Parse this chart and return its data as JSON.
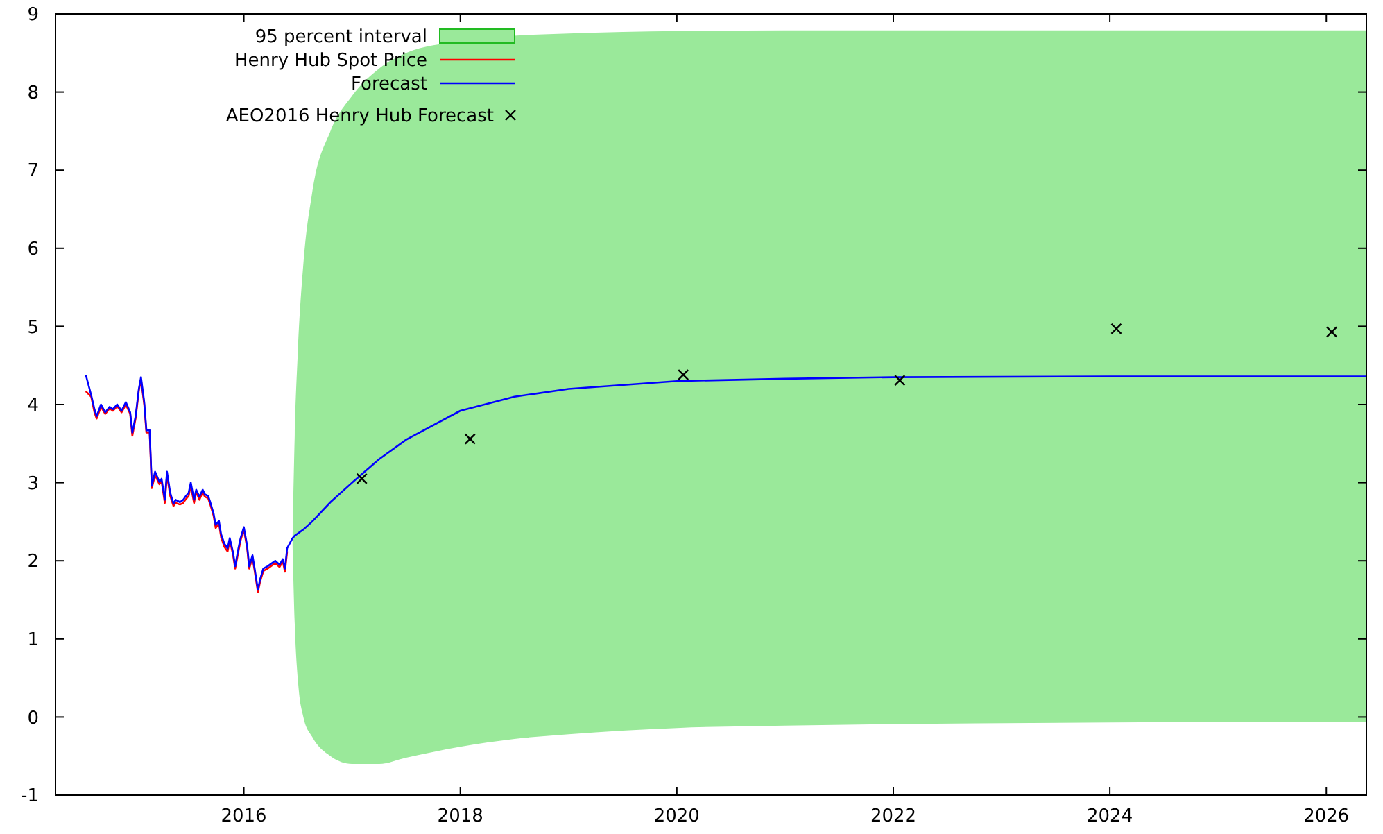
{
  "chart_data": {
    "type": "line",
    "xlim": [
      2014.26,
      2026.37
    ],
    "ylim": [
      -1,
      9
    ],
    "xticks": [
      2016,
      2018,
      2020,
      2022,
      2024,
      2026
    ],
    "yticks": [
      -1,
      0,
      1,
      2,
      3,
      4,
      5,
      6,
      7,
      8,
      9
    ],
    "grid": false,
    "legend": "top left",
    "line_style": "solid",
    "annotations": [
      "95 percent interval"
    ],
    "series": [
      {
        "name": "Henry Hub Spot Price",
        "color": "#ff0000",
        "x": [
          2014.54,
          2014.59,
          2014.62,
          2014.64,
          2014.68,
          2014.72,
          2014.76,
          2014.79,
          2014.83,
          2014.87,
          2014.91,
          2014.95,
          2014.97,
          2015.0,
          2015.03,
          2015.05,
          2015.08,
          2015.1,
          2015.13,
          2015.15,
          2015.18,
          2015.22,
          2015.24,
          2015.27,
          2015.29,
          2015.32,
          2015.35,
          2015.37,
          2015.41,
          2015.44,
          2015.46,
          2015.49,
          2015.51,
          2015.54,
          2015.56,
          2015.59,
          2015.62,
          2015.64,
          2015.67,
          2015.69,
          2015.72,
          2015.74,
          2015.77,
          2015.79,
          2015.82,
          2015.85,
          2015.87,
          2015.9,
          2015.92,
          2015.95,
          2015.97,
          2016.0,
          2016.03,
          2016.05,
          2016.08,
          2016.1,
          2016.13,
          2016.15,
          2016.18,
          2016.22,
          2016.26,
          2016.29,
          2016.33,
          2016.36,
          2016.38,
          2016.4
        ],
        "values": [
          4.17,
          4.1,
          3.9,
          3.82,
          3.97,
          3.88,
          3.95,
          3.92,
          3.98,
          3.9,
          4.0,
          3.88,
          3.6,
          3.82,
          4.18,
          4.32,
          4.0,
          3.64,
          3.64,
          2.93,
          3.1,
          2.98,
          3.02,
          2.74,
          3.1,
          2.83,
          2.7,
          2.74,
          2.72,
          2.74,
          2.78,
          2.83,
          2.96,
          2.74,
          2.88,
          2.78,
          2.88,
          2.82,
          2.8,
          2.72,
          2.58,
          2.42,
          2.48,
          2.3,
          2.18,
          2.12,
          2.26,
          2.08,
          1.9,
          2.12,
          2.26,
          2.4,
          2.17,
          1.9,
          2.04,
          1.87,
          1.6,
          1.73,
          1.87,
          1.9,
          1.94,
          1.97,
          1.92,
          1.99,
          1.86,
          2.12
        ]
      },
      {
        "name": "Forecast",
        "color": "#0000ff",
        "x": [
          2014.54,
          2014.59,
          2014.62,
          2014.64,
          2014.68,
          2014.72,
          2014.76,
          2014.79,
          2014.83,
          2014.87,
          2014.91,
          2014.95,
          2014.97,
          2015.0,
          2015.03,
          2015.05,
          2015.08,
          2015.1,
          2015.13,
          2015.15,
          2015.18,
          2015.22,
          2015.24,
          2015.27,
          2015.29,
          2015.32,
          2015.35,
          2015.37,
          2015.41,
          2015.44,
          2015.46,
          2015.49,
          2015.51,
          2015.54,
          2015.56,
          2015.59,
          2015.62,
          2015.64,
          2015.67,
          2015.69,
          2015.72,
          2015.74,
          2015.77,
          2015.79,
          2015.82,
          2015.85,
          2015.87,
          2015.9,
          2015.92,
          2015.95,
          2015.97,
          2016.0,
          2016.03,
          2016.05,
          2016.08,
          2016.1,
          2016.13,
          2016.15,
          2016.18,
          2016.22,
          2016.26,
          2016.29,
          2016.33,
          2016.36,
          2016.38,
          2016.4,
          2016.45,
          2016.47,
          2016.5,
          2016.55,
          2016.63,
          2016.8,
          2017.0,
          2017.25,
          2017.5,
          2018.0,
          2018.5,
          2019.0,
          2020.0,
          2021.0,
          2022.0,
          2024.0,
          2026.37
        ],
        "values": [
          4.38,
          4.12,
          3.94,
          3.85,
          4.0,
          3.9,
          3.97,
          3.94,
          4.0,
          3.92,
          4.03,
          3.9,
          3.64,
          3.85,
          4.2,
          4.35,
          4.03,
          3.67,
          3.67,
          2.96,
          3.14,
          3.01,
          3.05,
          2.78,
          3.14,
          2.87,
          2.73,
          2.78,
          2.75,
          2.78,
          2.82,
          2.87,
          3.0,
          2.78,
          2.91,
          2.82,
          2.91,
          2.85,
          2.83,
          2.75,
          2.61,
          2.46,
          2.51,
          2.34,
          2.22,
          2.16,
          2.29,
          2.11,
          1.93,
          2.16,
          2.29,
          2.43,
          2.2,
          1.93,
          2.07,
          1.9,
          1.63,
          1.76,
          1.9,
          1.93,
          1.97,
          2.0,
          1.95,
          2.02,
          1.9,
          2.16,
          2.29,
          2.32,
          2.35,
          2.4,
          2.5,
          2.75,
          3.0,
          3.3,
          3.55,
          3.92,
          4.1,
          4.2,
          4.3,
          4.33,
          4.35,
          4.36,
          4.36
        ],
        "lower": [
          null,
          null,
          null,
          null,
          null,
          null,
          null,
          null,
          null,
          null,
          null,
          null,
          null,
          null,
          null,
          null,
          null,
          null,
          null,
          null,
          null,
          null,
          null,
          null,
          null,
          null,
          null,
          null,
          null,
          null,
          null,
          null,
          null,
          null,
          null,
          null,
          null,
          null,
          null,
          null,
          null,
          null,
          null,
          null,
          null,
          null,
          null,
          null,
          null,
          null,
          null,
          null,
          null,
          null,
          null,
          null,
          null,
          null,
          null,
          null,
          null,
          null,
          null,
          null,
          null,
          null,
          2.2,
          1.2,
          0.47,
          0.0,
          -0.25,
          -0.5,
          -0.6,
          -0.6,
          -0.52,
          -0.38,
          -0.28,
          -0.22,
          -0.14,
          -0.11,
          -0.09,
          -0.07,
          -0.06
        ],
        "upper": [
          null,
          null,
          null,
          null,
          null,
          null,
          null,
          null,
          null,
          null,
          null,
          null,
          null,
          null,
          null,
          null,
          null,
          null,
          null,
          null,
          null,
          null,
          null,
          null,
          null,
          null,
          null,
          null,
          null,
          null,
          null,
          null,
          null,
          null,
          null,
          null,
          null,
          null,
          null,
          null,
          null,
          null,
          null,
          null,
          null,
          null,
          null,
          null,
          null,
          null,
          null,
          null,
          null,
          null,
          null,
          null,
          null,
          null,
          null,
          null,
          null,
          null,
          null,
          null,
          null,
          null,
          2.3,
          3.6,
          4.7,
          5.8,
          6.7,
          7.5,
          7.95,
          8.3,
          8.5,
          8.65,
          8.72,
          8.75,
          8.78,
          8.79,
          8.79,
          8.79,
          8.79
        ]
      },
      {
        "name": "AEO2016 Henry Hub Forecast",
        "type": "scatter",
        "color": "#000000",
        "marker": "cross",
        "x": [
          2017.09,
          2018.09,
          2020.06,
          2022.06,
          2024.06,
          2026.05
        ],
        "values": [
          3.05,
          3.56,
          4.38,
          4.31,
          4.97,
          4.93
        ]
      }
    ]
  }
}
